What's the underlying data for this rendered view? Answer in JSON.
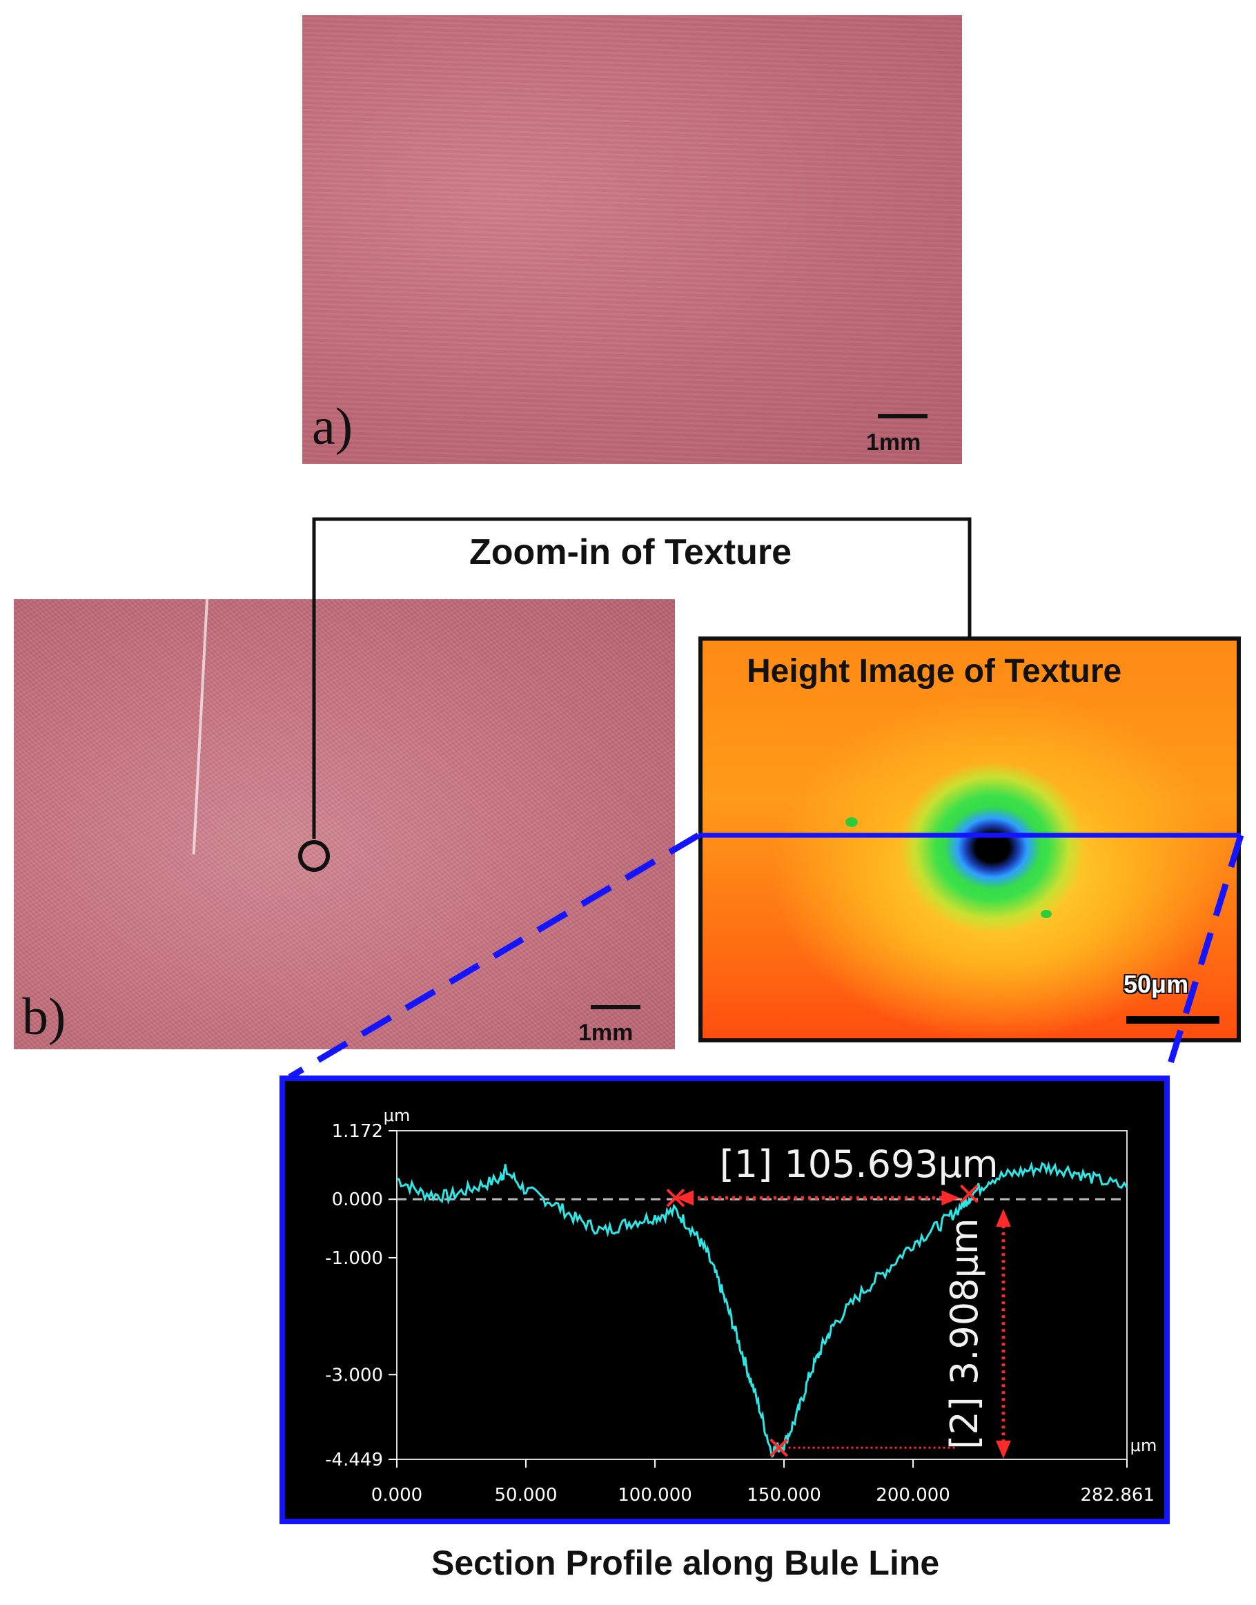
{
  "panel_a": {
    "letter": "a)",
    "scale": "1mm"
  },
  "panel_b": {
    "letter": "b)",
    "scale": "1mm"
  },
  "zoom": {
    "title": "Zoom-in of Texture"
  },
  "height_image": {
    "title": "Height Image of Texture",
    "scale": "50μm"
  },
  "profile_caption": "Section Profile along Bule Line",
  "chart_data": {
    "type": "line",
    "xlabel": "μm",
    "ylabel": "μm",
    "xlim": [
      0,
      282.861
    ],
    "ylim": [
      -4.449,
      1.172
    ],
    "x_ticks": [
      "0.000",
      "50.000",
      "100.000",
      "150.000",
      "200.000",
      "282.861"
    ],
    "x_tick_values": [
      0,
      50,
      100,
      150,
      200,
      282.861
    ],
    "y_ticks": [
      "1.172",
      "0.000",
      "-1.000",
      "-3.000",
      "-4.449"
    ],
    "y_tick_values": [
      1.172,
      0,
      -1,
      -3,
      -4.449
    ],
    "series": [
      {
        "x": [
          0,
          10,
          20,
          30,
          40,
          42,
          50,
          60,
          70,
          80,
          90,
          100,
          108,
          115,
          120,
          125,
          130,
          135,
          140,
          145,
          150,
          155,
          160,
          165,
          170,
          180,
          190,
          200,
          210,
          218,
          222,
          230,
          240,
          250,
          260,
          270,
          282.861
        ],
        "y": [
          0.35,
          0.1,
          0.05,
          0.2,
          0.35,
          0.5,
          0.15,
          -0.05,
          -0.35,
          -0.55,
          -0.4,
          -0.3,
          -0.2,
          -0.55,
          -0.9,
          -1.45,
          -2.1,
          -2.8,
          -3.5,
          -4.3,
          -4.2,
          -3.7,
          -3.0,
          -2.5,
          -2.1,
          -1.6,
          -1.2,
          -0.75,
          -0.45,
          -0.15,
          0.05,
          0.35,
          0.45,
          0.55,
          0.5,
          0.35,
          0.2
        ]
      }
    ],
    "reference_line_y": 0,
    "annotations": [
      {
        "label": "[1] 105.693μm",
        "x_from": 108,
        "x_to": 218,
        "y": 0
      },
      {
        "label": "[2] 3.908μm",
        "x": 235,
        "y_from": 0,
        "y_to": -4.2
      }
    ]
  }
}
